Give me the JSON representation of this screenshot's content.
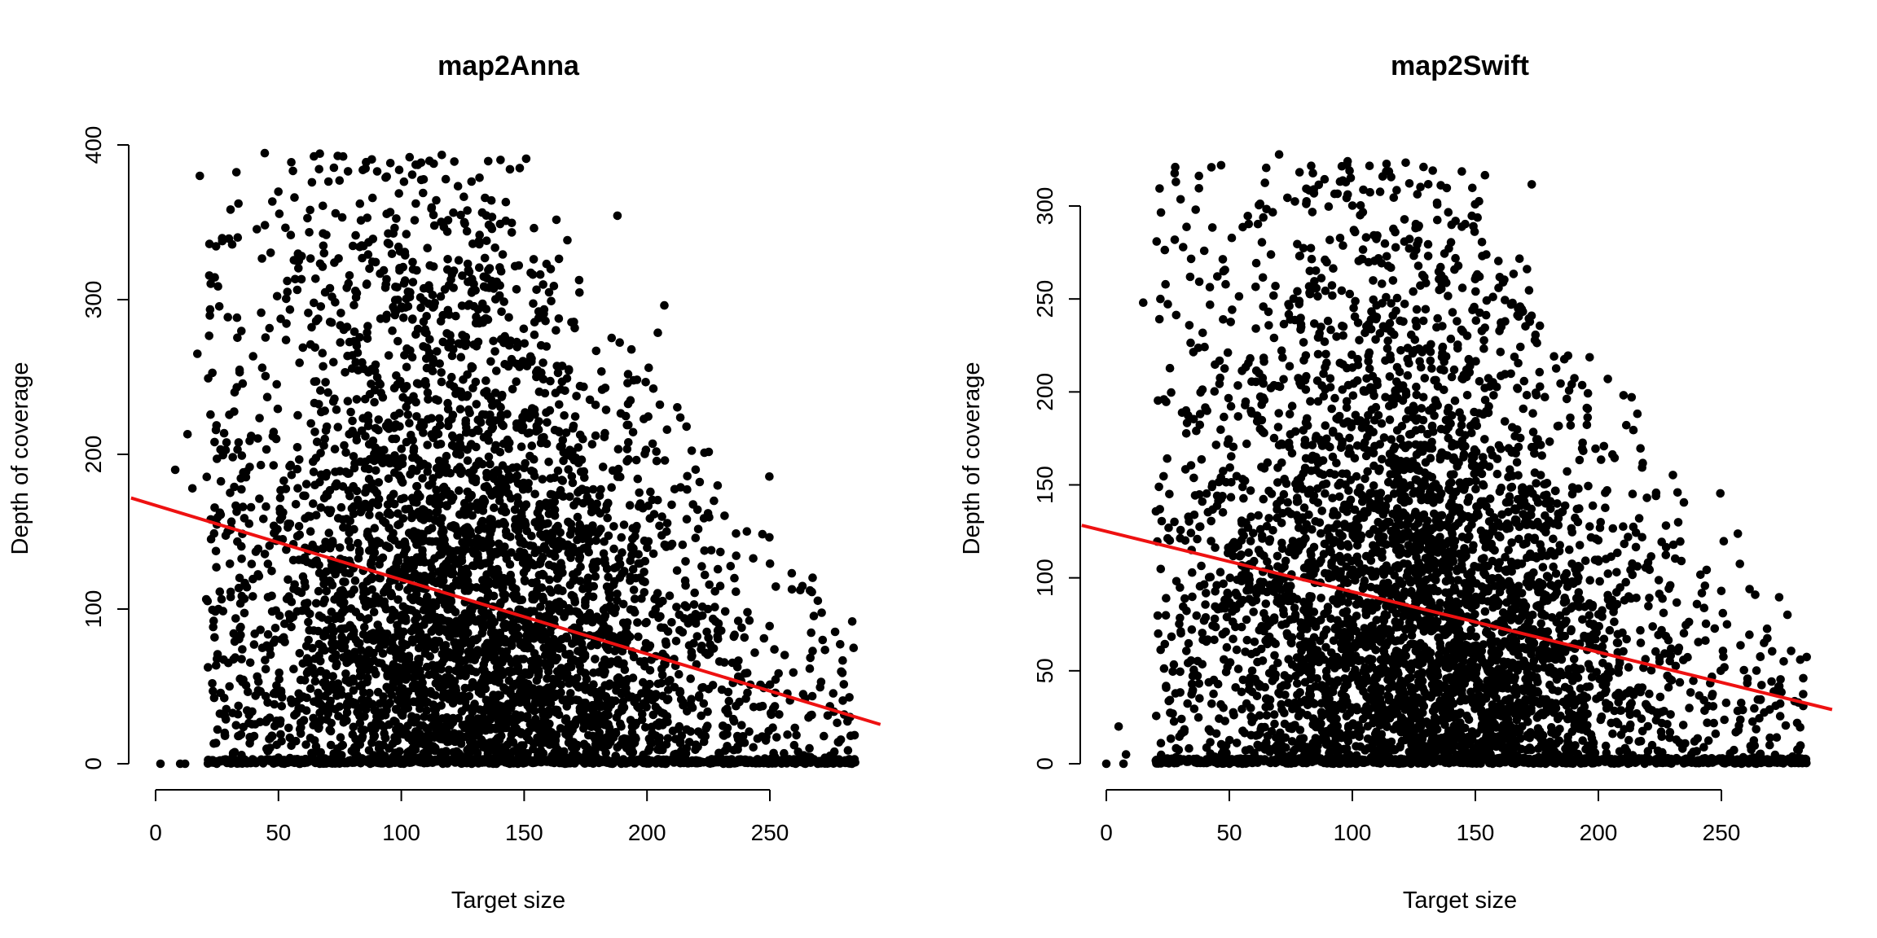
{
  "chart_data": [
    {
      "type": "scatter",
      "title": "map2Anna",
      "xlabel": "Target size",
      "ylabel": "Depth of coverage",
      "xlim": [
        -10,
        295
      ],
      "ylim": [
        0,
        400
      ],
      "xticks": [
        0,
        50,
        100,
        150,
        200,
        250
      ],
      "yticks": [
        0,
        100,
        200,
        300,
        400
      ],
      "grid": false,
      "legend": "none",
      "point_color": "#000000",
      "regression_line": {
        "color": "#ee1111",
        "intercept": 167,
        "slope": -0.48
      },
      "description": "dense point cloud, x mostly 25-285, y 0-395, densest at low y near x 70-200; isolated points near (2,0), (10,0), (8,190), (13,213)"
    },
    {
      "type": "scatter",
      "title": "map2Swift",
      "xlabel": "Target size",
      "ylabel": "Depth of coverage",
      "xlim": [
        -10,
        295
      ],
      "ylim": [
        0,
        330
      ],
      "xticks": [
        0,
        50,
        100,
        150,
        200,
        250
      ],
      "yticks": [
        0,
        50,
        100,
        150,
        200,
        250,
        300
      ],
      "grid": false,
      "legend": "none",
      "point_color": "#000000",
      "regression_line": {
        "color": "#ee1111",
        "intercept": 125,
        "slope": -0.325
      },
      "description": "dense point cloud, x mostly 20-285, y 0-328, densest at low y near x 60-220; isolated points near (0,0), (5,20), (8,5), (15,248)"
    }
  ]
}
